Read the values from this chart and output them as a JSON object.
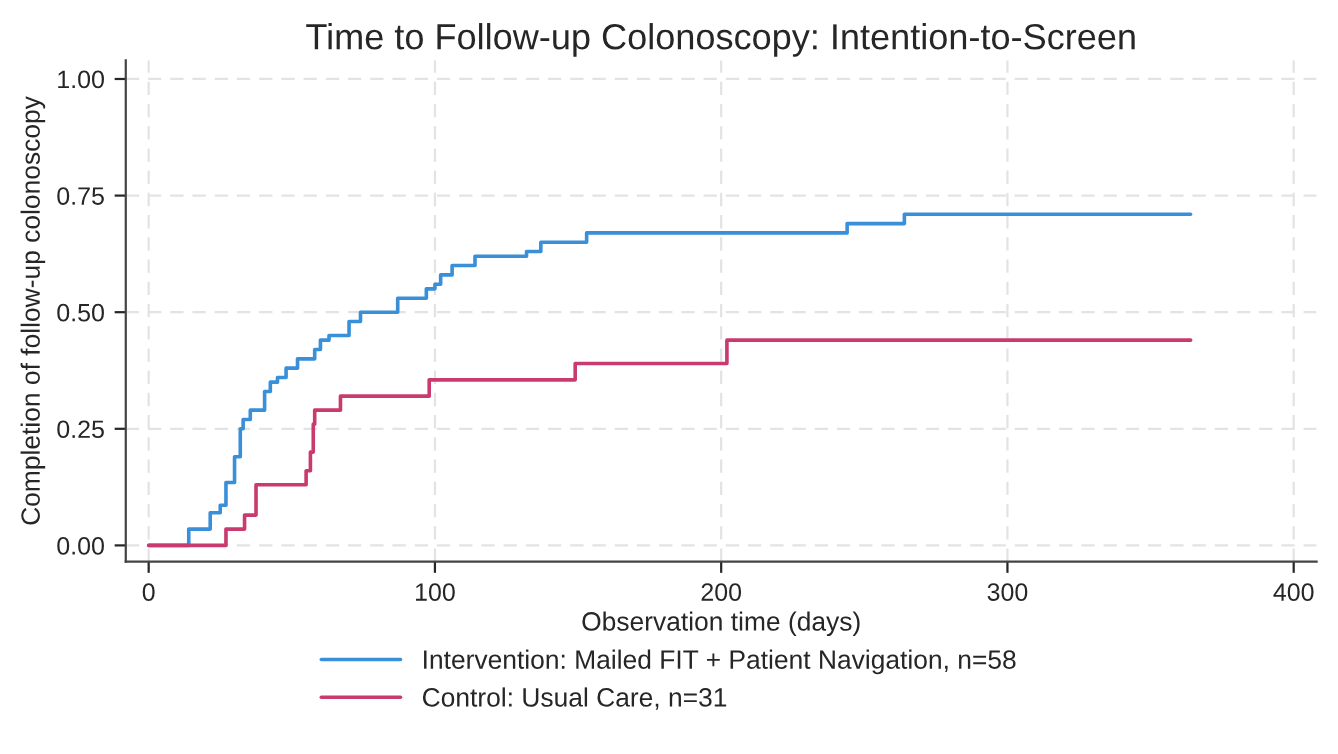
{
  "chart_data": {
    "type": "step",
    "title": "Time to Follow-up Colonoscopy: Intention-to-Screen",
    "xlabel": "Observation time (days)",
    "ylabel": "Completion of follow-up colonoscopy",
    "xlim": [
      -8,
      408
    ],
    "ylim": [
      -0.035,
      1.04
    ],
    "xticks": [
      0,
      100,
      200,
      300,
      400
    ],
    "yticks": [
      {
        "value": 0,
        "label": "0.00"
      },
      {
        "value": 0.25,
        "label": "0.25"
      },
      {
        "value": 0.5,
        "label": "0.50"
      },
      {
        "value": 0.75,
        "label": "0.75"
      },
      {
        "value": 1,
        "label": "1.00"
      }
    ],
    "grid": true,
    "legend": "bottom",
    "line_style": "solid",
    "marker": "none",
    "series": [
      {
        "name": "Intervention: Mailed FIT + Patient Navigation, n=58",
        "color": "#3a8fd9",
        "x": [
          0,
          14,
          21.5,
          25,
          27,
          30,
          32,
          33,
          35.5,
          40.5,
          42.5,
          45,
          48,
          52,
          58,
          60,
          63,
          70,
          74,
          87,
          97,
          100,
          102,
          106,
          114,
          132,
          137,
          153,
          244,
          264,
          364
        ],
        "values": [
          0,
          0.035,
          0.07,
          0.086,
          0.135,
          0.19,
          0.25,
          0.27,
          0.29,
          0.33,
          0.35,
          0.36,
          0.38,
          0.4,
          0.42,
          0.44,
          0.45,
          0.48,
          0.5,
          0.53,
          0.55,
          0.56,
          0.58,
          0.6,
          0.62,
          0.63,
          0.65,
          0.67,
          0.69,
          0.71,
          0.71
        ]
      },
      {
        "name": "Control: Usual Care, n=31",
        "color": "#c93a6e",
        "x": [
          0,
          27,
          33.5,
          37.5,
          55,
          56.5,
          57.5,
          58,
          67,
          98,
          149,
          202,
          364
        ],
        "values": [
          0,
          0.035,
          0.065,
          0.13,
          0.16,
          0.2,
          0.26,
          0.29,
          0.32,
          0.355,
          0.39,
          0.44,
          0.44
        ]
      }
    ]
  }
}
